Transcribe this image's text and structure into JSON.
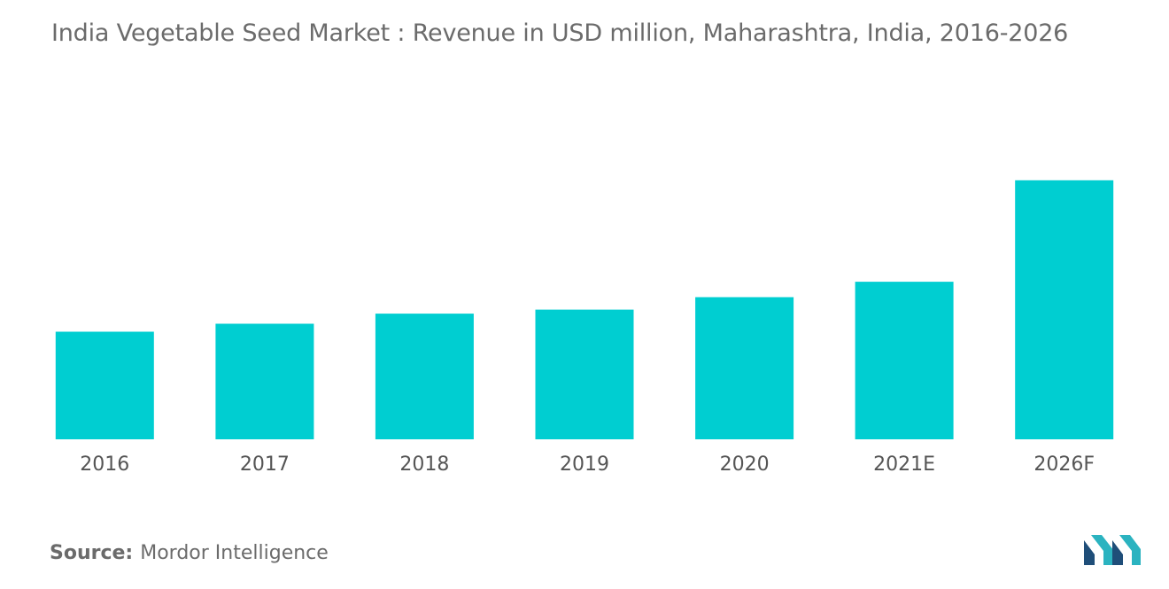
{
  "title": "India Vegetable Seed Market : Revenue in USD million, Maharashtra, India, 2016-2026",
  "source": {
    "label": "Source:",
    "value": "Mordor Intelligence"
  },
  "logo": {
    "icon": "mordor-intelligence-logo",
    "colors": [
      "#1f4e79",
      "#2bb3c0"
    ]
  },
  "chart_data": {
    "type": "bar",
    "categories": [
      "2016",
      "2017",
      "2018",
      "2019",
      "2020",
      "2021E",
      "2026F"
    ],
    "values": [
      40.5,
      43.5,
      47.3,
      48.8,
      53.5,
      59.3,
      97.5
    ],
    "ylim": [
      0,
      100
    ],
    "bar_color": "#00ced1",
    "grid": false,
    "legend": "none"
  }
}
